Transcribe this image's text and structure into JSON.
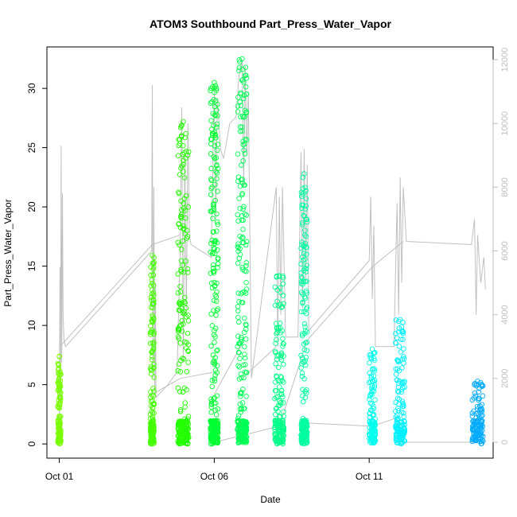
{
  "chart_data": {
    "type": "scatter",
    "title": "ATOM3 Southbound Part_Press_Water_Vapor",
    "xlabel": "Date",
    "ylabel": "Part_Press_Water_Vapor",
    "x_ticks": [
      {
        "label": "Oct 01",
        "value": 0
      },
      {
        "label": "Oct 06",
        "value": 5
      },
      {
        "label": "Oct 11",
        "value": 10
      }
    ],
    "xlim": [
      -0.4,
      14.0
    ],
    "ylim": [
      -1.2,
      33.5
    ],
    "y_ticks": [
      0,
      5,
      10,
      15,
      20,
      25,
      30
    ],
    "y2lim": [
      -500,
      12400
    ],
    "y2_ticks": [
      0,
      2000,
      4000,
      6000,
      8000,
      10000,
      12000
    ],
    "grid": false,
    "series_clusters": [
      {
        "x": 0.0,
        "width": 0.1,
        "ymin": 0.0,
        "ymax": 7.4,
        "color": "#7cfc00"
      },
      {
        "x": 3.0,
        "width": 0.12,
        "ymin": 0.0,
        "ymax": 15.9,
        "color": "#44ff00"
      },
      {
        "x": 4.0,
        "width": 0.35,
        "ymin": 0.0,
        "ymax": 27.2,
        "color": "#22ff00"
      },
      {
        "x": 5.0,
        "width": 0.25,
        "ymin": 0.0,
        "ymax": 30.5,
        "color": "#00ff33"
      },
      {
        "x": 5.9,
        "width": 0.3,
        "ymin": 0.0,
        "ymax": 32.5,
        "color": "#00ff55"
      },
      {
        "x": 7.1,
        "width": 0.3,
        "ymin": 0.0,
        "ymax": 14.2,
        "color": "#00ff88"
      },
      {
        "x": 7.9,
        "width": 0.2,
        "ymin": 0.0,
        "ymax": 22.8,
        "color": "#00ffa0"
      },
      {
        "x": 10.1,
        "width": 0.2,
        "ymin": 0.0,
        "ymax": 8.0,
        "color": "#00ffee"
      },
      {
        "x": 11.0,
        "width": 0.3,
        "ymin": 0.0,
        "ymax": 10.5,
        "color": "#00f0ff"
      },
      {
        "x": 13.5,
        "width": 0.35,
        "ymin": 0.0,
        "ymax": 5.3,
        "color": "#00aaff"
      }
    ],
    "secondary_series": {
      "axis": "right",
      "color": "#c0c0c0",
      "points": [
        [
          0.0,
          0
        ],
        [
          0.02,
          5500
        ],
        [
          0.04,
          1200
        ],
        [
          0.06,
          9300
        ],
        [
          0.08,
          2500
        ],
        [
          0.1,
          7800
        ],
        [
          0.12,
          4000
        ],
        [
          0.15,
          3200
        ],
        [
          0.2,
          3000
        ],
        [
          2.98,
          6000
        ],
        [
          3.0,
          11200
        ],
        [
          3.02,
          2000
        ],
        [
          3.05,
          8000
        ],
        [
          3.08,
          1500
        ],
        [
          3.1,
          5000
        ],
        [
          3.12,
          1400
        ],
        [
          3.5,
          1800
        ],
        [
          3.8,
          2200
        ],
        [
          3.9,
          6000
        ],
        [
          3.95,
          10500
        ],
        [
          4.0,
          2500
        ],
        [
          4.05,
          9000
        ],
        [
          4.1,
          4000
        ],
        [
          4.15,
          10000
        ],
        [
          4.2,
          6500
        ],
        [
          4.25,
          6200
        ],
        [
          4.9,
          5800
        ],
        [
          5.0,
          11000
        ],
        [
          5.05,
          7000
        ],
        [
          5.1,
          10800
        ],
        [
          5.2,
          9200
        ],
        [
          5.3,
          8900
        ],
        [
          5.5,
          10000
        ],
        [
          5.7,
          10200
        ],
        [
          5.8,
          11500
        ],
        [
          5.9,
          12000
        ],
        [
          5.95,
          8000
        ],
        [
          6.0,
          11800
        ],
        [
          6.05,
          9000
        ],
        [
          6.1,
          11000
        ],
        [
          6.2,
          2000
        ],
        [
          7.0,
          8000
        ],
        [
          7.05,
          3000
        ],
        [
          7.1,
          7700
        ],
        [
          7.15,
          4000
        ],
        [
          7.2,
          8000
        ],
        [
          7.3,
          3300
        ],
        [
          7.7,
          3300
        ],
        [
          7.8,
          9100
        ],
        [
          7.85,
          4200
        ],
        [
          7.9,
          9200
        ],
        [
          7.95,
          5000
        ],
        [
          8.0,
          8700
        ],
        [
          8.05,
          3500
        ],
        [
          10.0,
          5700
        ],
        [
          10.05,
          7700
        ],
        [
          10.1,
          4500
        ],
        [
          10.15,
          6800
        ],
        [
          10.2,
          3000
        ],
        [
          10.8,
          3000
        ],
        [
          10.9,
          7500
        ],
        [
          10.95,
          4000
        ],
        [
          11.0,
          8300
        ],
        [
          11.05,
          5000
        ],
        [
          11.1,
          8000
        ],
        [
          11.2,
          6300
        ],
        [
          13.3,
          6200
        ],
        [
          13.4,
          7000
        ],
        [
          13.45,
          4000
        ],
        [
          13.5,
          6500
        ],
        [
          13.6,
          5000
        ],
        [
          13.7,
          5800
        ],
        [
          13.75,
          4800
        ]
      ],
      "connectors": [
        [
          [
            0.02,
            3000
          ],
          [
            3.0,
            6200
          ]
        ],
        [
          [
            3.0,
            6200
          ],
          [
            3.9,
            6500
          ]
        ],
        [
          [
            3.0,
            1500
          ],
          [
            3.9,
            2000
          ]
        ],
        [
          [
            3.9,
            2000
          ],
          [
            5.0,
            2200
          ]
        ],
        [
          [
            5.0,
            1500
          ],
          [
            5.9,
            3100
          ]
        ],
        [
          [
            5.9,
            2000
          ],
          [
            7.0,
            3000
          ]
        ],
        [
          [
            5.0,
            0
          ],
          [
            7.1,
            500
          ]
        ],
        [
          [
            7.1,
            500
          ],
          [
            8.0,
            3200
          ]
        ],
        [
          [
            8.0,
            3200
          ],
          [
            10.1,
            5500
          ]
        ],
        [
          [
            10.1,
            5500
          ],
          [
            11.1,
            6300
          ]
        ],
        [
          [
            8.0,
            600
          ],
          [
            10.1,
            500
          ]
        ],
        [
          [
            10.1,
            500
          ],
          [
            11.0,
            800
          ]
        ],
        [
          [
            11.0,
            0
          ],
          [
            13.5,
            0
          ]
        ]
      ]
    }
  }
}
